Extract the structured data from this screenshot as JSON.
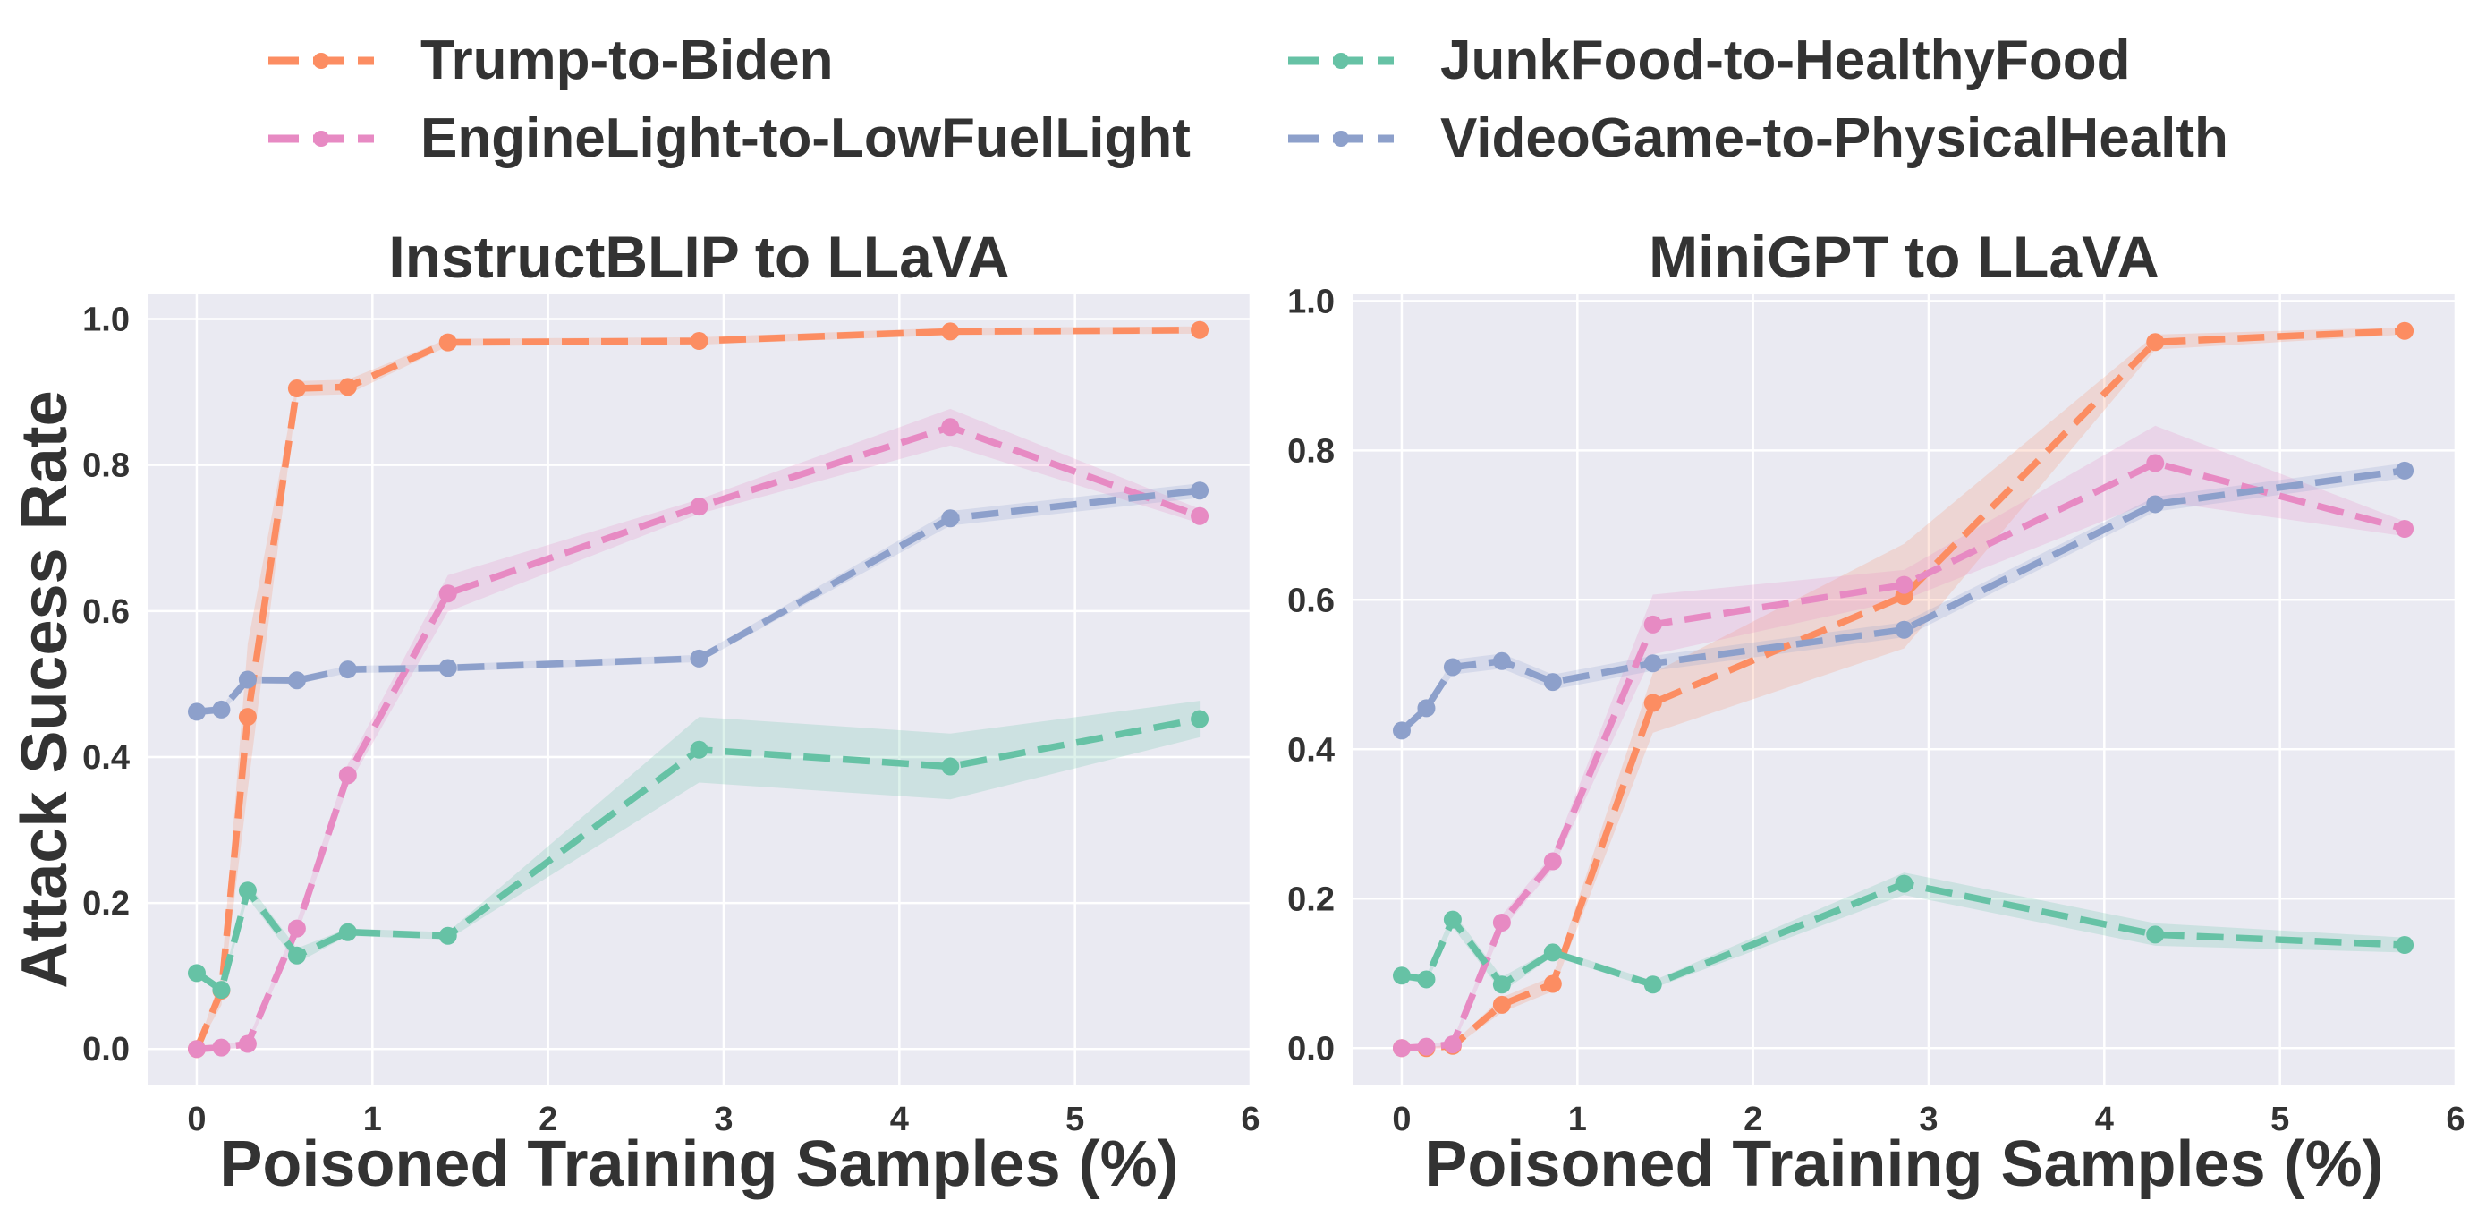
{
  "legend": {
    "position": "top",
    "entries": [
      {
        "label": "Trump-to-Biden",
        "color": "#fc8d62"
      },
      {
        "label": "EngineLight-to-LowFuelLight",
        "color": "#e78ac3"
      },
      {
        "label": "JunkFood-to-HealthyFood",
        "color": "#66c2a5"
      },
      {
        "label": "VideoGame-to-PhysicalHealth",
        "color": "#8da0cb"
      }
    ]
  },
  "colors": {
    "plot_background": "#eaeaf2",
    "grid": "#ffffff",
    "text": "#333333"
  },
  "chart_data": [
    {
      "type": "line",
      "title": "InstructBLIP to LLaVA",
      "xlabel": "Poisoned Training Samples (%)",
      "ylabel": "Attack Sucess Rate",
      "xlim": [
        -0.28,
        6.0
      ],
      "ylim": [
        -0.05,
        1.035
      ],
      "xticks": [
        0,
        1,
        2,
        3,
        4,
        5,
        6
      ],
      "yticks": [
        0.0,
        0.2,
        0.4,
        0.6,
        0.8,
        1.0
      ],
      "xtick_labels": [
        "0",
        "1",
        "2",
        "3",
        "4",
        "5",
        "6"
      ],
      "ytick_labels": [
        "0.0",
        "0.2",
        "0.4",
        "0.6",
        "0.8",
        "1.0"
      ],
      "grid": true,
      "x": [
        0,
        0.14,
        0.29,
        0.57,
        0.86,
        1.43,
        2.86,
        4.29,
        5.71
      ],
      "series": [
        {
          "name": "Trump-to-Biden",
          "color": "#fc8d62",
          "values": [
            0.0,
            0.08,
            0.455,
            0.905,
            0.907,
            0.968,
            0.97,
            0.983,
            0.985
          ],
          "band": [
            0.0,
            0.02,
            0.1,
            0.01,
            0.01,
            0.005,
            0.005,
            0.005,
            0.005
          ]
        },
        {
          "name": "EngineLight-to-LowFuelLight",
          "color": "#e78ac3",
          "values": [
            0.0,
            0.002,
            0.007,
            0.165,
            0.375,
            0.624,
            0.743,
            0.852,
            0.73
          ],
          "band": [
            0.0,
            0.003,
            0.005,
            0.01,
            0.015,
            0.025,
            0.01,
            0.025,
            0.01
          ]
        },
        {
          "name": "JunkFood-to-HealthyFood",
          "color": "#66c2a5",
          "values": [
            0.104,
            0.081,
            0.217,
            0.128,
            0.16,
            0.155,
            0.41,
            0.387,
            0.452
          ],
          "band": [
            0.005,
            0.005,
            0.01,
            0.01,
            0.005,
            0.005,
            0.045,
            0.045,
            0.025
          ]
        },
        {
          "name": "VideoGame-to-PhysicalHealth",
          "color": "#8da0cb",
          "values": [
            0.462,
            0.465,
            0.506,
            0.505,
            0.52,
            0.522,
            0.535,
            0.727,
            0.765
          ],
          "band": [
            0.005,
            0.005,
            0.005,
            0.005,
            0.005,
            0.005,
            0.005,
            0.01,
            0.01
          ]
        }
      ]
    },
    {
      "type": "line",
      "title": "MiniGPT to LLaVA",
      "xlabel": "Poisoned Training Samples (%)",
      "ylabel": "",
      "xlim": [
        -0.28,
        6.0
      ],
      "ylim": [
        -0.05,
        1.01
      ],
      "xticks": [
        0,
        1,
        2,
        3,
        4,
        5,
        6
      ],
      "yticks": [
        0.0,
        0.2,
        0.4,
        0.6,
        0.8,
        1.0
      ],
      "xtick_labels": [
        "0",
        "1",
        "2",
        "3",
        "4",
        "5",
        "6"
      ],
      "ytick_labels": [
        "0.0",
        "0.2",
        "0.4",
        "0.6",
        "0.8",
        "1.0"
      ],
      "grid": true,
      "x": [
        0,
        0.14,
        0.29,
        0.57,
        0.86,
        1.43,
        2.86,
        4.29,
        5.71
      ],
      "series": [
        {
          "name": "Trump-to-Biden",
          "color": "#fc8d62",
          "values": [
            0.0,
            0.0,
            0.003,
            0.058,
            0.086,
            0.462,
            0.605,
            0.945,
            0.96
          ],
          "band": [
            0.0,
            0.0,
            0.003,
            0.01,
            0.01,
            0.04,
            0.07,
            0.01,
            0.005
          ]
        },
        {
          "name": "EngineLight-to-LowFuelLight",
          "color": "#e78ac3",
          "values": [
            0.0,
            0.002,
            0.005,
            0.168,
            0.25,
            0.567,
            0.62,
            0.783,
            0.695
          ],
          "band": [
            0.0,
            0.003,
            0.005,
            0.01,
            0.01,
            0.04,
            0.02,
            0.05,
            0.01
          ]
        },
        {
          "name": "JunkFood-to-HealthyFood",
          "color": "#66c2a5",
          "values": [
            0.097,
            0.092,
            0.172,
            0.085,
            0.128,
            0.085,
            0.22,
            0.152,
            0.138
          ],
          "band": [
            0.005,
            0.005,
            0.01,
            0.01,
            0.005,
            0.005,
            0.015,
            0.015,
            0.01
          ]
        },
        {
          "name": "VideoGame-to-PhysicalHealth",
          "color": "#8da0cb",
          "values": [
            0.425,
            0.455,
            0.51,
            0.518,
            0.49,
            0.515,
            0.56,
            0.728,
            0.773
          ],
          "band": [
            0.005,
            0.005,
            0.01,
            0.01,
            0.01,
            0.01,
            0.01,
            0.01,
            0.01
          ]
        }
      ]
    }
  ]
}
